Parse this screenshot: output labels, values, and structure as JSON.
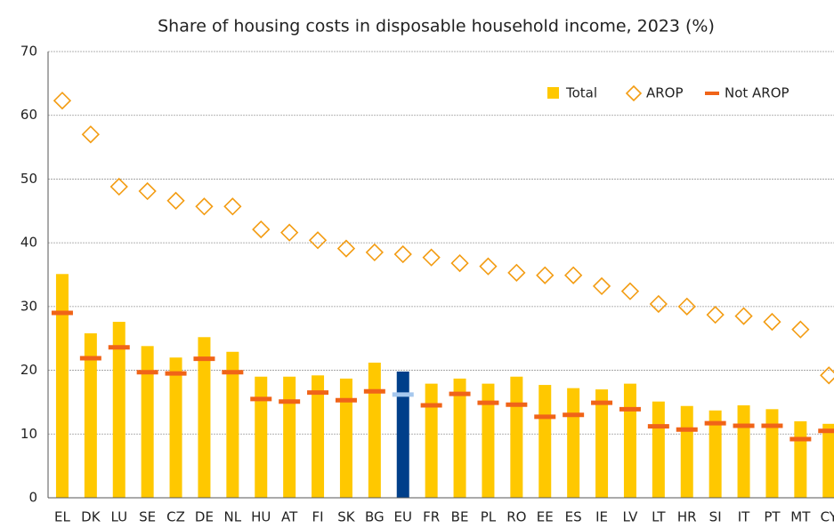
{
  "chart_data": {
    "type": "bar",
    "title": "Share of housing costs in disposable household income, 2023 (%)",
    "categories": [
      "EL",
      "DK",
      "LU",
      "SE",
      "CZ",
      "DE",
      "NL",
      "HU",
      "AT",
      "FI",
      "SK",
      "BG",
      "EU",
      "FR",
      "BE",
      "PL",
      "RO",
      "EE",
      "ES",
      "IE",
      "LV",
      "LT",
      "HR",
      "SI",
      "IT",
      "PT",
      "MT",
      "CY"
    ],
    "series": [
      {
        "name": "Total",
        "color": "#ffc800",
        "marker": "bar",
        "values": [
          35.1,
          25.8,
          27.6,
          23.8,
          22.0,
          25.2,
          22.9,
          19.0,
          19.0,
          19.2,
          18.7,
          21.2,
          19.8,
          17.9,
          18.7,
          17.9,
          19.0,
          17.7,
          17.2,
          17.0,
          17.9,
          15.1,
          14.4,
          13.7,
          14.5,
          13.9,
          12.0,
          11.6
        ]
      },
      {
        "name": "AROP",
        "color": "#f39c12",
        "marker": "diamond",
        "values": [
          62.3,
          57.0,
          48.8,
          48.1,
          46.6,
          45.7,
          45.7,
          42.1,
          41.6,
          40.4,
          39.1,
          38.5,
          38.2,
          37.7,
          36.8,
          36.3,
          35.3,
          34.9,
          34.9,
          33.2,
          32.4,
          30.4,
          30.0,
          28.7,
          28.5,
          27.6,
          26.4,
          19.2
        ]
      },
      {
        "name": "Not AROP",
        "color": "#f06418",
        "marker": "dash",
        "values": [
          29.0,
          21.9,
          23.6,
          19.7,
          19.5,
          21.8,
          19.7,
          15.5,
          15.1,
          16.5,
          15.3,
          16.7,
          16.2,
          14.5,
          16.3,
          14.9,
          14.6,
          12.7,
          13.0,
          14.9,
          13.9,
          11.2,
          10.7,
          11.7,
          11.3,
          11.3,
          9.2,
          10.5
        ]
      }
    ],
    "highlight": {
      "category": "EU",
      "colors": [
        "#003f8a",
        null,
        "#a6c8ee"
      ]
    },
    "ylim": [
      0,
      70
    ],
    "yticks": [
      0,
      10,
      20,
      30,
      40,
      50,
      60,
      70
    ],
    "grid": true,
    "legend": "top-right"
  }
}
